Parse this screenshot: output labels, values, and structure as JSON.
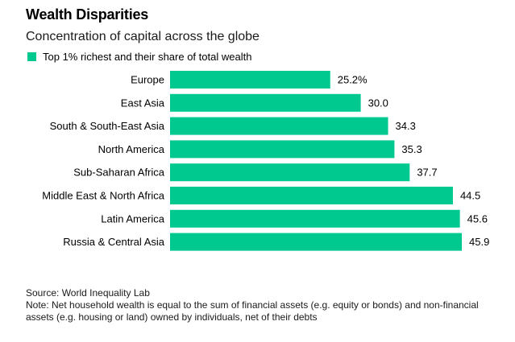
{
  "title": "Wealth Disparities",
  "subtitle": "Concentration of capital across the globe",
  "colors": {
    "bar": "#00c98f",
    "text": "#000000"
  },
  "legend": {
    "label": "Top 1% richest and their share of total wealth"
  },
  "footer": {
    "source": "Source: World Inequality Lab",
    "note": "Note: Net household wealth is equal to the sum of financial assets (e.g. equity or bonds) and non-financial assets (e.g. housing or land) owned by individuals, net of their debts"
  },
  "chart_data": {
    "type": "bar",
    "orientation": "horizontal",
    "title": "Wealth Disparities",
    "subtitle": "Concentration of capital across the globe",
    "categories": [
      "Europe",
      "East Asia",
      "South & South-East Asia",
      "North America",
      "Sub-Saharan Africa",
      "Middle East & North Africa",
      "Latin America",
      "Russia & Central Asia"
    ],
    "series": [
      {
        "name": "Top 1% richest and their share of total wealth",
        "values": [
          25.2,
          30.0,
          34.3,
          35.3,
          37.7,
          44.5,
          45.6,
          45.9
        ]
      }
    ],
    "value_labels": [
      "25.2%",
      "30.0",
      "34.3",
      "35.3",
      "37.7",
      "44.5",
      "45.6",
      "45.9"
    ],
    "xlim": [
      0,
      45.9
    ],
    "grid": false,
    "legend_position": "top-left"
  }
}
